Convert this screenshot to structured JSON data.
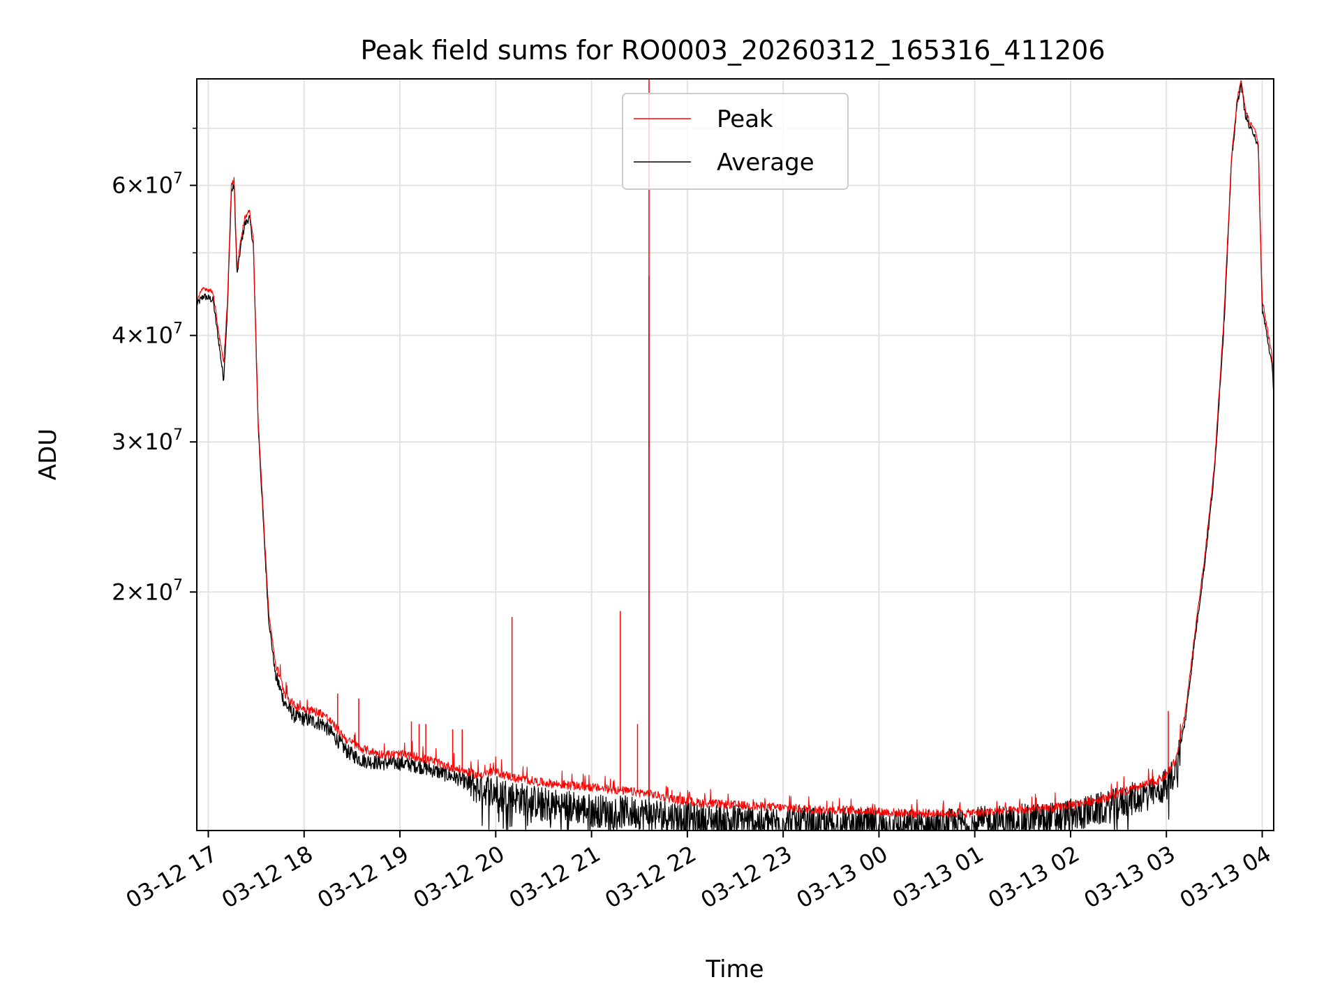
{
  "chart_data": {
    "type": "line",
    "title": "Peak field sums for RO0003_20260312_165316_411206",
    "xlabel": "Time",
    "ylabel": "ADU",
    "yscale": "log",
    "xlim_hours": [
      16.88,
      28.12
    ],
    "ylim": [
      10500000,
      80000000
    ],
    "grid": true,
    "legend_position": "upper center",
    "x_ticks": [
      {
        "label": "03-12 17",
        "hour": 17
      },
      {
        "label": "03-12 18",
        "hour": 18
      },
      {
        "label": "03-12 19",
        "hour": 19
      },
      {
        "label": "03-12 20",
        "hour": 20
      },
      {
        "label": "03-12 21",
        "hour": 21
      },
      {
        "label": "03-12 22",
        "hour": 22
      },
      {
        "label": "03-12 23",
        "hour": 23
      },
      {
        "label": "03-13 00",
        "hour": 24
      },
      {
        "label": "03-13 01",
        "hour": 25
      },
      {
        "label": "03-13 02",
        "hour": 26
      },
      {
        "label": "03-13 03",
        "hour": 27
      },
      {
        "label": "03-13 04",
        "hour": 28
      }
    ],
    "y_ticks": [
      {
        "value": 20000000,
        "mantissa": "2",
        "exp": "7"
      },
      {
        "value": 30000000,
        "mantissa": "3",
        "exp": "7"
      },
      {
        "value": 40000000,
        "mantissa": "4",
        "exp": "7"
      },
      {
        "value": 60000000,
        "mantissa": "6",
        "exp": "7"
      }
    ],
    "y_minor_ticks": [
      50000000,
      70000000
    ],
    "series": [
      {
        "name": "Peak",
        "color": "#ff0000",
        "points": [
          [
            16.88,
            44000000
          ],
          [
            16.95,
            45500000
          ],
          [
            17.05,
            45000000
          ],
          [
            17.1,
            41000000
          ],
          [
            17.16,
            37000000
          ],
          [
            17.2,
            44000000
          ],
          [
            17.24,
            60000000
          ],
          [
            17.27,
            61000000
          ],
          [
            17.3,
            48000000
          ],
          [
            17.34,
            52000000
          ],
          [
            17.38,
            55000000
          ],
          [
            17.43,
            56000000
          ],
          [
            17.47,
            52000000
          ],
          [
            17.52,
            32000000
          ],
          [
            17.58,
            24000000
          ],
          [
            17.63,
            19000000
          ],
          [
            17.7,
            16500000
          ],
          [
            17.8,
            15200000
          ],
          [
            17.9,
            14700000
          ],
          [
            18.0,
            14600000
          ],
          [
            18.1,
            14500000
          ],
          [
            18.2,
            14400000
          ],
          [
            18.3,
            14000000
          ],
          [
            18.45,
            13400000
          ],
          [
            18.6,
            13100000
          ],
          [
            18.8,
            12900000
          ],
          [
            19.0,
            12900000
          ],
          [
            19.2,
            12800000
          ],
          [
            19.4,
            12600000
          ],
          [
            19.6,
            12400000
          ],
          [
            19.8,
            12200000
          ],
          [
            20.0,
            12300000
          ],
          [
            20.2,
            12100000
          ],
          [
            20.5,
            11950000
          ],
          [
            20.8,
            11850000
          ],
          [
            21.0,
            11800000
          ],
          [
            21.3,
            11700000
          ],
          [
            21.6,
            11600000
          ],
          [
            21.9,
            11400000
          ],
          [
            22.2,
            11300000
          ],
          [
            22.5,
            11250000
          ],
          [
            22.8,
            11200000
          ],
          [
            23.1,
            11150000
          ],
          [
            23.4,
            11100000
          ],
          [
            23.7,
            11100000
          ],
          [
            24.0,
            11050000
          ],
          [
            24.3,
            11000000
          ],
          [
            24.6,
            11000000
          ],
          [
            24.9,
            11000000
          ],
          [
            25.2,
            11050000
          ],
          [
            25.5,
            11100000
          ],
          [
            25.8,
            11150000
          ],
          [
            26.1,
            11300000
          ],
          [
            26.4,
            11500000
          ],
          [
            26.7,
            11800000
          ],
          [
            26.9,
            12000000
          ],
          [
            27.0,
            12200000
          ],
          [
            27.1,
            12700000
          ],
          [
            27.2,
            14500000
          ],
          [
            27.3,
            18000000
          ],
          [
            27.4,
            22000000
          ],
          [
            27.5,
            28000000
          ],
          [
            27.6,
            42000000
          ],
          [
            27.68,
            65000000
          ],
          [
            27.74,
            76000000
          ],
          [
            27.78,
            80000000
          ],
          [
            27.82,
            74000000
          ],
          [
            27.87,
            71000000
          ],
          [
            27.92,
            70000000
          ],
          [
            27.96,
            67000000
          ],
          [
            28.0,
            44000000
          ],
          [
            28.05,
            41000000
          ],
          [
            28.1,
            38000000
          ],
          [
            28.12,
            35500000
          ]
        ],
        "spikes": [
          [
            18.35,
            15200000
          ],
          [
            18.57,
            15000000
          ],
          [
            19.12,
            14100000
          ],
          [
            19.2,
            14000000
          ],
          [
            19.27,
            14000000
          ],
          [
            19.55,
            13800000
          ],
          [
            19.65,
            13800000
          ],
          [
            20.17,
            18700000
          ],
          [
            21.3,
            19000000
          ],
          [
            21.48,
            14000000
          ],
          [
            21.6,
            80000000
          ],
          [
            27.02,
            14500000
          ]
        ]
      },
      {
        "name": "Average",
        "color": "#000000",
        "points": [
          [
            16.88,
            43500000
          ],
          [
            16.95,
            44500000
          ],
          [
            17.05,
            44000000
          ],
          [
            17.1,
            40000000
          ],
          [
            17.16,
            35500000
          ],
          [
            17.2,
            43000000
          ],
          [
            17.24,
            59000000
          ],
          [
            17.27,
            60000000
          ],
          [
            17.3,
            47000000
          ],
          [
            17.34,
            51000000
          ],
          [
            17.38,
            54000000
          ],
          [
            17.43,
            55000000
          ],
          [
            17.47,
            51000000
          ],
          [
            17.52,
            31500000
          ],
          [
            17.58,
            23500000
          ],
          [
            17.63,
            18600000
          ],
          [
            17.7,
            16000000
          ],
          [
            17.8,
            14800000
          ],
          [
            17.9,
            14300000
          ],
          [
            18.0,
            14200000
          ],
          [
            18.1,
            14100000
          ],
          [
            18.2,
            14000000
          ],
          [
            18.3,
            13600000
          ],
          [
            18.45,
            13000000
          ],
          [
            18.6,
            12700000
          ],
          [
            18.8,
            12600000
          ],
          [
            19.0,
            12600000
          ],
          [
            19.2,
            12500000
          ],
          [
            19.4,
            12300000
          ],
          [
            19.6,
            12100000
          ],
          [
            19.8,
            11800000
          ],
          [
            20.0,
            11700000
          ],
          [
            20.2,
            11500000
          ],
          [
            20.5,
            11300000
          ],
          [
            20.8,
            11200000
          ],
          [
            21.0,
            11100000
          ],
          [
            21.3,
            11050000
          ],
          [
            21.6,
            11000000
          ],
          [
            21.9,
            10900000
          ],
          [
            22.2,
            10800000
          ],
          [
            22.5,
            10800000
          ],
          [
            22.8,
            10750000
          ],
          [
            23.1,
            10750000
          ],
          [
            23.4,
            10700000
          ],
          [
            23.7,
            10700000
          ],
          [
            24.0,
            10650000
          ],
          [
            24.3,
            10650000
          ],
          [
            24.6,
            10650000
          ],
          [
            24.9,
            10700000
          ],
          [
            25.2,
            10750000
          ],
          [
            25.5,
            10800000
          ],
          [
            25.8,
            10850000
          ],
          [
            26.1,
            11000000
          ],
          [
            26.4,
            11200000
          ],
          [
            26.7,
            11500000
          ],
          [
            26.9,
            11700000
          ],
          [
            27.0,
            11900000
          ],
          [
            27.1,
            12400000
          ],
          [
            27.2,
            14200000
          ],
          [
            27.3,
            17700000
          ],
          [
            27.4,
            21600000
          ],
          [
            27.5,
            27500000
          ],
          [
            27.6,
            41000000
          ],
          [
            27.68,
            64000000
          ],
          [
            27.74,
            75000000
          ],
          [
            27.78,
            79000000
          ],
          [
            27.82,
            73000000
          ],
          [
            27.87,
            70000000
          ],
          [
            27.92,
            69000000
          ],
          [
            27.96,
            66000000
          ],
          [
            28.0,
            43000000
          ],
          [
            28.05,
            40000000
          ],
          [
            28.1,
            37000000
          ],
          [
            28.12,
            34500000
          ]
        ],
        "spikes": [
          [
            21.6,
            47000000
          ]
        ]
      }
    ]
  }
}
